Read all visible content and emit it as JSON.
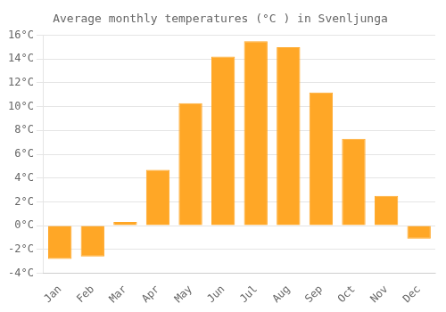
{
  "chart_data": {
    "type": "bar",
    "title": "Average monthly temperatures (°C ) in Svenljunga",
    "categories": [
      "Jan",
      "Feb",
      "Mar",
      "Apr",
      "May",
      "Jun",
      "Jul",
      "Aug",
      "Sep",
      "Oct",
      "Nov",
      "Dec"
    ],
    "values": [
      -2.8,
      -2.6,
      0.3,
      4.7,
      10.3,
      14.2,
      15.5,
      15.0,
      11.2,
      7.3,
      2.5,
      -1.1
    ],
    "color": "#FFA726",
    "ylim": [
      -4,
      16
    ],
    "yticks": [
      {
        "value": -4,
        "label": "-4°C"
      },
      {
        "value": -2,
        "label": "-2°C"
      },
      {
        "value": 0,
        "label": "0°C"
      },
      {
        "value": 2,
        "label": "2°C"
      },
      {
        "value": 4,
        "label": "4°C"
      },
      {
        "value": 6,
        "label": "6°C"
      },
      {
        "value": 8,
        "label": "8°C"
      },
      {
        "value": 10,
        "label": "10°C"
      },
      {
        "value": 12,
        "label": "12°C"
      },
      {
        "value": 14,
        "label": "14°C"
      },
      {
        "value": 16,
        "label": "16°C"
      }
    ],
    "grid": true
  }
}
